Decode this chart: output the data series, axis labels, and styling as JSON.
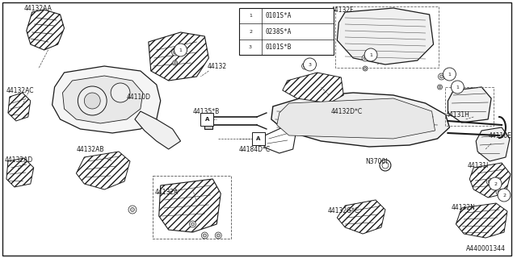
{
  "fig_width": 6.4,
  "fig_height": 3.2,
  "dpi": 100,
  "background_color": "#ffffff",
  "line_color": "#1a1a1a",
  "legend_items": [
    {
      "num": "1",
      "code": "0101S*A"
    },
    {
      "num": "2",
      "code": "0238S*A"
    },
    {
      "num": "3",
      "code": "0101S*B"
    }
  ],
  "footer_text": "A440001344"
}
